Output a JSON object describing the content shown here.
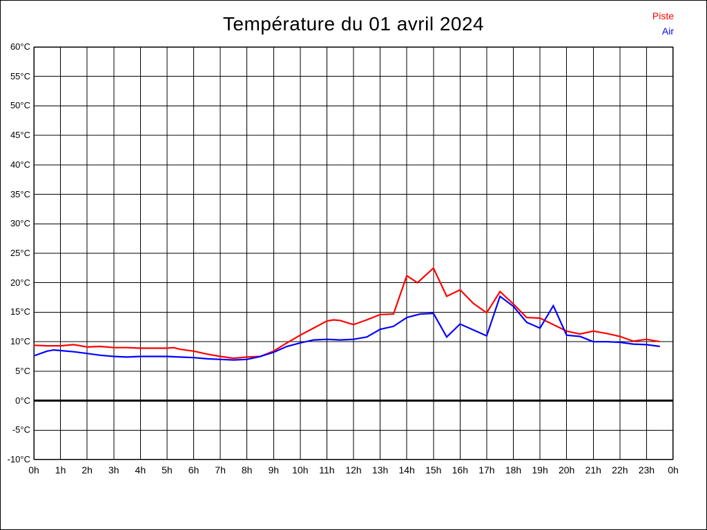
{
  "title": "Température du 01 avril 2024",
  "legend": {
    "items": [
      {
        "label": "Piste",
        "color": "#ff0000"
      },
      {
        "label": "Air",
        "color": "#0000ff"
      }
    ],
    "position": "top-right"
  },
  "chart_data": {
    "type": "line",
    "title": "Température du 01 avril 2024",
    "xlabel": "",
    "ylabel": "",
    "xlim": [
      0,
      24
    ],
    "ylim": [
      -10,
      60
    ],
    "grid": true,
    "zero_line": {
      "value": 0,
      "thick": true
    },
    "legend_position": "top-right",
    "x_tick_labels": [
      "0h",
      "1h",
      "2h",
      "3h",
      "4h",
      "5h",
      "6h",
      "7h",
      "8h",
      "9h",
      "10h",
      "11h",
      "12h",
      "13h",
      "14h",
      "15h",
      "16h",
      "17h",
      "18h",
      "19h",
      "20h",
      "21h",
      "22h",
      "23h",
      "0h"
    ],
    "y_tick_labels": [
      "60°C",
      "55°C",
      "50°C",
      "45°C",
      "40°C",
      "35°C",
      "30°C",
      "25°C",
      "20°C",
      "15°C",
      "10°C",
      "5°C",
      "0°C",
      "-5°C",
      "-10°C"
    ],
    "y_tick_values": [
      60,
      55,
      50,
      45,
      40,
      35,
      30,
      25,
      20,
      15,
      10,
      5,
      0,
      -5,
      -10
    ],
    "series": [
      {
        "name": "Piste",
        "color": "#ff0000",
        "points": [
          [
            0,
            9.4
          ],
          [
            0.5,
            9.3
          ],
          [
            1,
            9.3
          ],
          [
            1.5,
            9.5
          ],
          [
            2,
            9.1
          ],
          [
            2.5,
            9.2
          ],
          [
            3,
            9.0
          ],
          [
            3.5,
            9.0
          ],
          [
            4,
            8.9
          ],
          [
            4.5,
            8.9
          ],
          [
            5,
            8.9
          ],
          [
            5.25,
            9.0
          ],
          [
            5.5,
            8.7
          ],
          [
            6,
            8.4
          ],
          [
            6.5,
            7.9
          ],
          [
            7,
            7.5
          ],
          [
            7.5,
            7.2
          ],
          [
            8,
            7.4
          ],
          [
            8.5,
            7.5
          ],
          [
            9,
            8.4
          ],
          [
            9.5,
            9.8
          ],
          [
            10,
            11.1
          ],
          [
            10.5,
            12.3
          ],
          [
            11,
            13.5
          ],
          [
            11.25,
            13.7
          ],
          [
            11.5,
            13.6
          ],
          [
            12,
            12.9
          ],
          [
            12.5,
            13.7
          ],
          [
            13,
            14.6
          ],
          [
            13.5,
            14.7
          ],
          [
            14,
            21.2
          ],
          [
            14.4,
            20.0
          ],
          [
            15,
            22.5
          ],
          [
            15.5,
            17.7
          ],
          [
            16,
            18.8
          ],
          [
            16.5,
            16.5
          ],
          [
            17,
            14.9
          ],
          [
            17.5,
            18.5
          ],
          [
            18,
            16.4
          ],
          [
            18.5,
            14.1
          ],
          [
            19,
            14.0
          ],
          [
            19.5,
            12.9
          ],
          [
            20,
            11.8
          ],
          [
            20.5,
            11.3
          ],
          [
            21,
            11.8
          ],
          [
            21.5,
            11.4
          ],
          [
            22,
            10.9
          ],
          [
            22.5,
            10.1
          ],
          [
            23,
            10.4
          ],
          [
            23.5,
            10.0
          ]
        ]
      },
      {
        "name": "Air",
        "color": "#0000ff",
        "points": [
          [
            0,
            7.6
          ],
          [
            0.5,
            8.4
          ],
          [
            0.75,
            8.6
          ],
          [
            1,
            8.5
          ],
          [
            1.5,
            8.3
          ],
          [
            2,
            8.0
          ],
          [
            2.5,
            7.7
          ],
          [
            3,
            7.5
          ],
          [
            3.5,
            7.4
          ],
          [
            4,
            7.5
          ],
          [
            4.5,
            7.5
          ],
          [
            5,
            7.5
          ],
          [
            5.5,
            7.4
          ],
          [
            6,
            7.3
          ],
          [
            6.5,
            7.1
          ],
          [
            7,
            7.0
          ],
          [
            7.5,
            6.9
          ],
          [
            8,
            7.0
          ],
          [
            8.5,
            7.5
          ],
          [
            9,
            8.2
          ],
          [
            9.5,
            9.2
          ],
          [
            10,
            9.8
          ],
          [
            10.5,
            10.3
          ],
          [
            11,
            10.4
          ],
          [
            11.5,
            10.3
          ],
          [
            12,
            10.4
          ],
          [
            12.5,
            10.8
          ],
          [
            13,
            12.1
          ],
          [
            13.5,
            12.6
          ],
          [
            14,
            14.1
          ],
          [
            14.5,
            14.7
          ],
          [
            15,
            14.8
          ],
          [
            15.5,
            10.8
          ],
          [
            16,
            13.0
          ],
          [
            16.5,
            12.0
          ],
          [
            17,
            11.0
          ],
          [
            17.5,
            17.7
          ],
          [
            18,
            16.0
          ],
          [
            18.5,
            13.3
          ],
          [
            19,
            12.3
          ],
          [
            19.5,
            16.1
          ],
          [
            20,
            11.1
          ],
          [
            20.5,
            10.9
          ],
          [
            21,
            10.0
          ],
          [
            21.5,
            10.0
          ],
          [
            22,
            9.9
          ],
          [
            22.5,
            9.6
          ],
          [
            23,
            9.5
          ],
          [
            23.5,
            9.2
          ]
        ]
      }
    ]
  }
}
